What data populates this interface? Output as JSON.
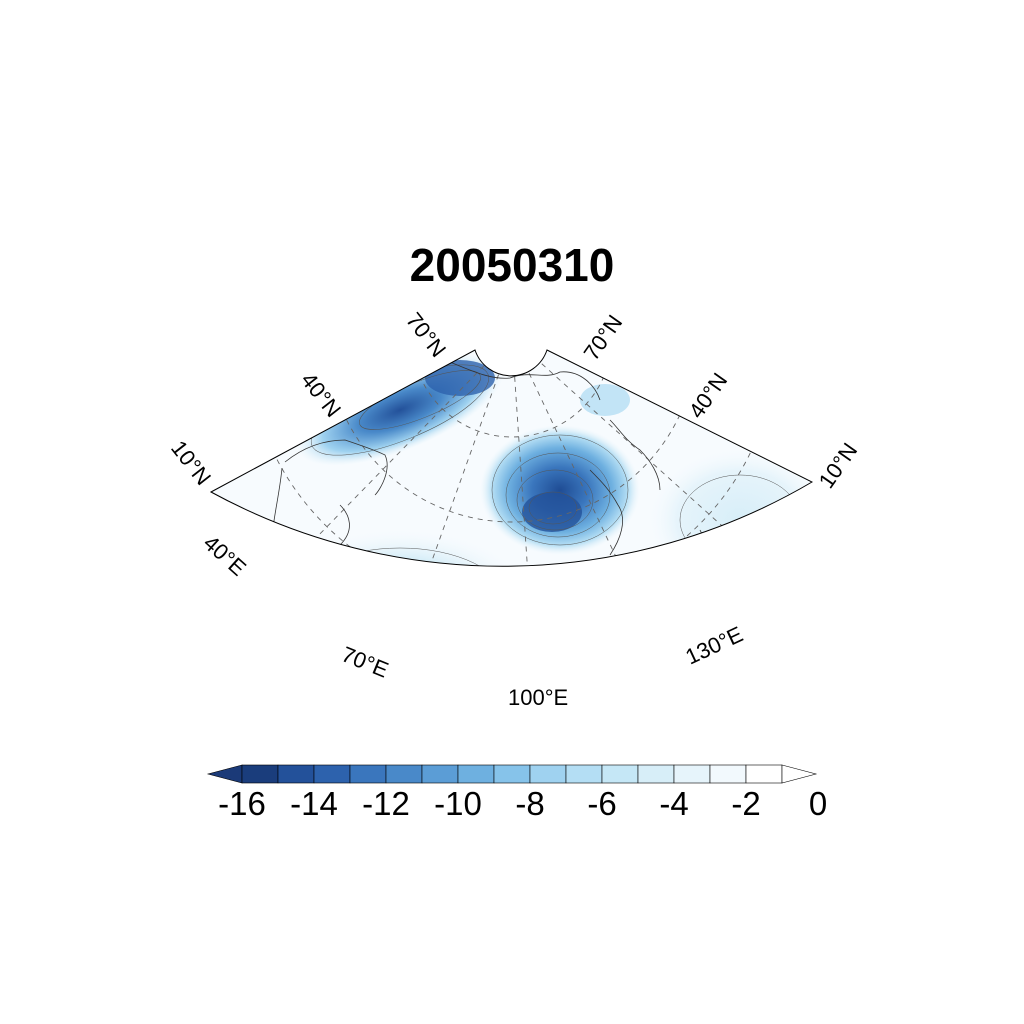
{
  "title": "20050310",
  "lat_labels_left": [
    "10°N",
    "40°N",
    "70°N"
  ],
  "lat_labels_right": [
    "70°N",
    "40°N",
    "10°N"
  ],
  "lon_labels": [
    "40°E",
    "70°E",
    "100°E",
    "130°E"
  ],
  "colorbar": {
    "ticks": [
      "-16",
      "-14",
      "-12",
      "-10",
      "-8",
      "-6",
      "-4",
      "-2",
      "0"
    ],
    "colors": [
      "#1a3d7c",
      "#23519a",
      "#2d62ad",
      "#3a76bd",
      "#4989c9",
      "#5b9dd6",
      "#6eb0e0",
      "#86c3ea",
      "#9fd2f0",
      "#b4def4",
      "#c5e7f6",
      "#d7eef8",
      "#e6f4fb",
      "#f2f9fd",
      "#ffffff"
    ],
    "min_arrow_color": "#1b3a78",
    "max_arrow_color": "#ffffff"
  }
}
